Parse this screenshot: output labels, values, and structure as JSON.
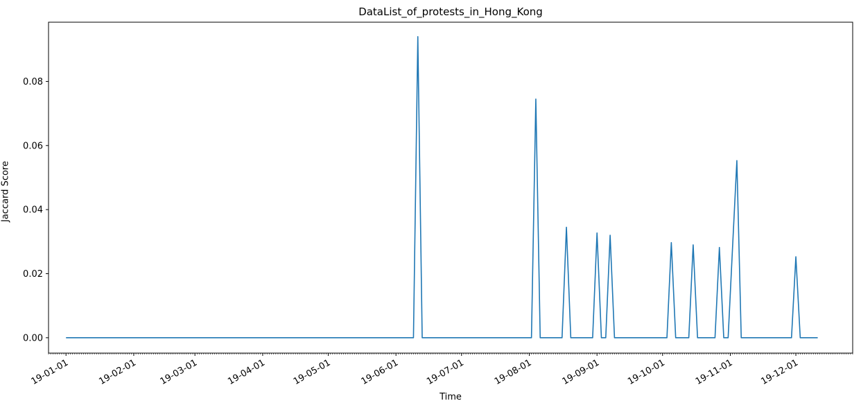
{
  "chart_data": {
    "type": "line",
    "title": "DataList_of_protests_in_Hong_Kong",
    "xlabel": "Time",
    "ylabel": "Jaccard Score",
    "color": "#1f77b4",
    "x_range": [
      "2018-12-24",
      "2019-12-27"
    ],
    "ylim": [
      -0.0048,
      0.0985
    ],
    "yticks": [
      0.0,
      0.02,
      0.04,
      0.06,
      0.08
    ],
    "ytick_labels": [
      "0.00",
      "0.02",
      "0.04",
      "0.06",
      "0.08"
    ],
    "xticks": [
      "2019-01-01",
      "2019-02-01",
      "2019-03-01",
      "2019-04-01",
      "2019-05-01",
      "2019-06-01",
      "2019-07-01",
      "2019-08-01",
      "2019-09-01",
      "2019-10-01",
      "2019-11-01",
      "2019-12-01"
    ],
    "xtick_labels": [
      "19-01-01",
      "19-02-01",
      "19-03-01",
      "19-04-01",
      "19-05-01",
      "19-06-01",
      "19-07-01",
      "19-08-01",
      "19-09-01",
      "19-10-01",
      "19-11-01",
      "19-12-01"
    ],
    "grid": false,
    "series": [
      {
        "points": [
          [
            "2019-01-01",
            0
          ],
          [
            "2019-06-09",
            0
          ],
          [
            "2019-06-11",
            0.094
          ],
          [
            "2019-06-13",
            0
          ],
          [
            "2019-08-02",
            0
          ],
          [
            "2019-08-04",
            0.0745
          ],
          [
            "2019-08-06",
            0
          ],
          [
            "2019-08-16",
            0
          ],
          [
            "2019-08-18",
            0.0345
          ],
          [
            "2019-08-20",
            0
          ],
          [
            "2019-08-30",
            0
          ],
          [
            "2019-09-01",
            0.0327
          ],
          [
            "2019-09-03",
            0
          ],
          [
            "2019-09-05",
            0
          ],
          [
            "2019-09-07",
            0.032
          ],
          [
            "2019-09-09",
            0
          ],
          [
            "2019-10-03",
            0
          ],
          [
            "2019-10-05",
            0.0297
          ],
          [
            "2019-10-07",
            0
          ],
          [
            "2019-10-13",
            0
          ],
          [
            "2019-10-15",
            0.029
          ],
          [
            "2019-10-17",
            0
          ],
          [
            "2019-10-25",
            0
          ],
          [
            "2019-10-27",
            0.0282
          ],
          [
            "2019-10-29",
            0
          ],
          [
            "2019-10-31",
            0
          ],
          [
            "2019-11-02",
            0.0278
          ],
          [
            "2019-11-04",
            0.0553
          ],
          [
            "2019-11-06",
            0
          ],
          [
            "2019-11-29",
            0
          ],
          [
            "2019-12-01",
            0.0253
          ],
          [
            "2019-12-03",
            0
          ],
          [
            "2019-12-11",
            0
          ]
        ]
      }
    ]
  }
}
